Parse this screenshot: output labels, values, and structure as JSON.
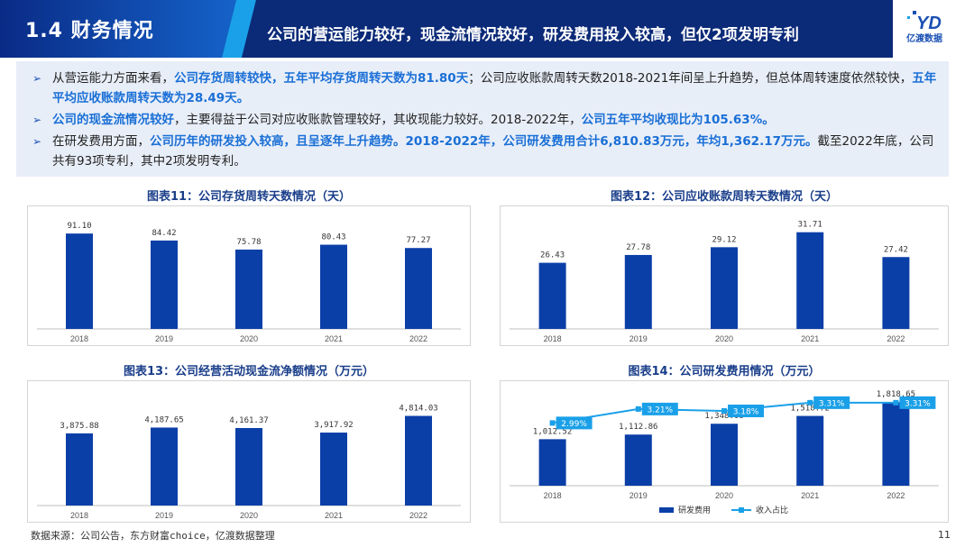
{
  "header": {
    "section_title": "1.4 财务情况",
    "headline": "公司的营运能力较好，现金流情况较好，研发费用投入较高，但仅2项发明专利",
    "logo_text": "亿渡数据",
    "colors": {
      "navy": "#0b2a78",
      "blue": "#1a4fb4",
      "accent": "#1aa0e8"
    }
  },
  "summary": {
    "bullets": [
      [
        {
          "t": "从营运能力方面来看，",
          "h": false
        },
        {
          "t": "公司存货周转较快，五年平均存货周转天数为81.80天",
          "h": true
        },
        {
          "t": "；公司应收账款周转天数2018-2021年间呈上升趋势，但总体周转速度依然较快，",
          "h": false
        },
        {
          "t": "五年平均应收账款周转天数为28.49天。",
          "h": true
        }
      ],
      [
        {
          "t": "公司的现金流情况较好",
          "h": true
        },
        {
          "t": "，主要得益于公司对应收账款管理较好，其收现能力较好。2018-2022年，",
          "h": false
        },
        {
          "t": "公司五年平均收现比为105.63%。",
          "h": true
        }
      ],
      [
        {
          "t": "在研发费用方面，",
          "h": false
        },
        {
          "t": "公司历年的研发投入较高，且呈逐年上升趋势。2018-2022年，公司研发费用合计6,810.83万元，年均1,362.17万元。",
          "h": true
        },
        {
          "t": "截至2022年底，公司共有93项专利，其中2项发明专利。",
          "h": false
        }
      ]
    ]
  },
  "chart_data": [
    {
      "type": "bar",
      "title": "图表11：公司存货周转天数情况（天）",
      "categories": [
        "2018",
        "2019",
        "2020",
        "2021",
        "2022"
      ],
      "values": [
        91.1,
        84.42,
        75.78,
        80.43,
        77.27
      ],
      "labels": [
        "91.10",
        "84.42",
        "75.78",
        "80.43",
        "77.27"
      ],
      "ylim": [
        0,
        105
      ],
      "grid": false,
      "bar_color": "#0b3fa8"
    },
    {
      "type": "bar",
      "title": "图表12：公司应收账款周转天数情况（天）",
      "categories": [
        "2018",
        "2019",
        "2020",
        "2021",
        "2022"
      ],
      "values": [
        26.43,
        27.78,
        29.12,
        31.71,
        27.42
      ],
      "labels": [
        "26.43",
        "27.78",
        "29.12",
        "31.71",
        "27.42"
      ],
      "ylim": [
        15,
        34
      ],
      "grid": false,
      "bar_color": "#0b3fa8"
    },
    {
      "type": "bar",
      "title": "图表13：公司经营活动现金流净额情况（万元）",
      "categories": [
        "2018",
        "2019",
        "2020",
        "2021",
        "2022"
      ],
      "values": [
        3875.88,
        4187.65,
        4161.37,
        3917.92,
        4814.03
      ],
      "labels": [
        "3,875.88",
        "4,187.65",
        "4,161.37",
        "3,917.92",
        "4,814.03"
      ],
      "ylim": [
        0,
        6000
      ],
      "grid": false,
      "bar_color": "#0b3fa8"
    },
    {
      "type": "bar",
      "title": "图表14：公司研发费用情况（万元）",
      "categories": [
        "2018",
        "2019",
        "2020",
        "2021",
        "2022"
      ],
      "series": [
        {
          "name": "研发费用",
          "type": "bar",
          "values": [
            1012.52,
            1112.86,
            1348.08,
            1518.72,
            1818.65
          ],
          "labels": [
            "1,012.52",
            "1,112.86",
            "1,348.08",
            "1,518.72",
            "1,818.65"
          ],
          "color": "#0b3fa8"
        },
        {
          "name": "收入占比",
          "type": "line",
          "values": [
            2.99,
            3.21,
            3.18,
            3.31,
            3.31
          ],
          "labels": [
            "2.99%",
            "3.21%",
            "3.18%",
            "3.31%",
            "3.31%"
          ],
          "color": "#1aa0e8",
          "axis": "right"
        }
      ],
      "ylim": [
        0,
        2000
      ],
      "y2lim": [
        2.0,
        3.45
      ],
      "legend": "bottom",
      "grid": false
    }
  ],
  "footer": {
    "source": "数据来源：公司公告，东方财富choice，亿渡数据整理",
    "page": "11"
  }
}
